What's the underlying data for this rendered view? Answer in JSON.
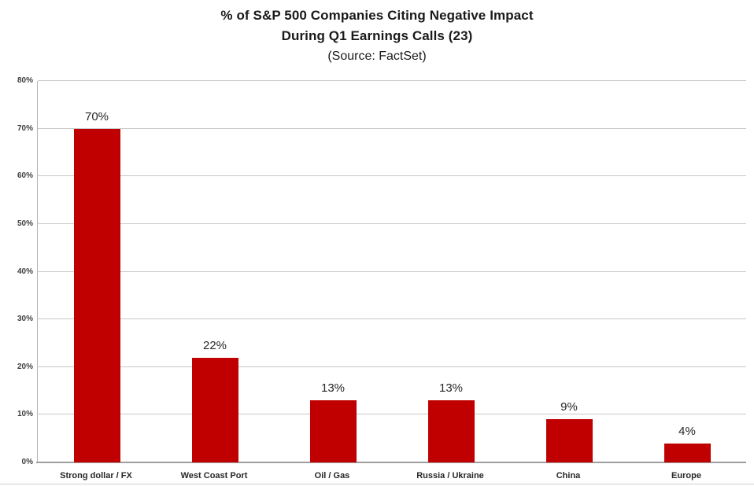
{
  "title": {
    "line1": "% of S&P 500 Companies Citing Negative Impact",
    "line2": "During Q1 Earnings Calls (23)",
    "line3": "(Source: FactSet)"
  },
  "chart_data": {
    "type": "bar",
    "title": "% of S&P 500 Companies Citing Negative Impact During Q1 Earnings Calls (23)",
    "subtitle": "(Source: FactSet)",
    "categories": [
      "Strong dollar / FX",
      "West Coast Port",
      "Oil / Gas",
      "Russia / Ukraine",
      "China",
      "Europe"
    ],
    "values": [
      70,
      22,
      13,
      13,
      9,
      4
    ],
    "data_labels": [
      "70%",
      "22%",
      "13%",
      "13%",
      "9%",
      "4%"
    ],
    "xlabel": "",
    "ylabel": "",
    "ylim": [
      0,
      80
    ],
    "yticks": [
      0,
      10,
      20,
      30,
      40,
      50,
      60,
      70,
      80
    ],
    "ytick_labels": [
      "0%",
      "10%",
      "20%",
      "30%",
      "40%",
      "50%",
      "60%",
      "70%",
      "80%"
    ],
    "grid": true,
    "legend": false,
    "legend_position": "none"
  },
  "colors": {
    "bar": "#c00000",
    "gridline": "#c8c8c8",
    "axis_line": "#9e9e9e",
    "title_text": "#1a1a1a",
    "label_text": "#262626",
    "tick_text": "#3f3f3f"
  }
}
